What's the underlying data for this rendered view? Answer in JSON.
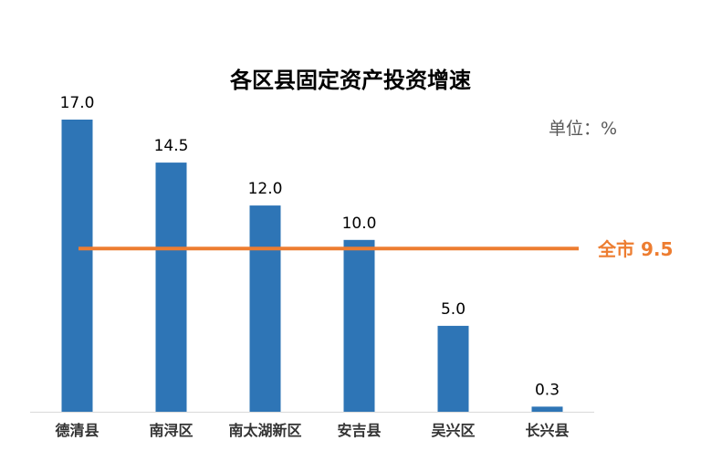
{
  "chart_data": {
    "type": "bar",
    "title": "各区县固定资产投资增速",
    "unit_label": "单位：%",
    "categories": [
      "德清县",
      "南浔区",
      "南太湖新区",
      "安吉县",
      "吴兴区",
      "长兴县"
    ],
    "values": [
      17.0,
      14.5,
      12.0,
      10.0,
      5.0,
      0.3
    ],
    "value_labels": [
      "17.0",
      "14.5",
      "12.0",
      "10.0",
      "5.0",
      "0.3"
    ],
    "reference_line": {
      "value": 9.5,
      "label": "全市 9.5",
      "color": "#ED7D31"
    },
    "ylim": [
      0,
      17
    ],
    "grid": false,
    "bar_color": "#2E75B6",
    "axis_color": "#D9D9D9"
  }
}
